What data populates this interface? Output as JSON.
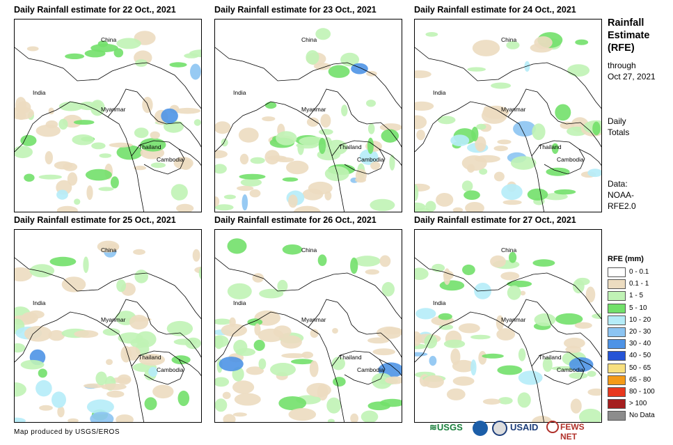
{
  "panels": [
    {
      "title": "Daily Rainfall estimate for 22 Oct., 2021",
      "labels": {
        "china": "China",
        "india": "India",
        "myanmar": "Myanmar",
        "thailand": "Thailand",
        "cambodia": "Cambodia"
      }
    },
    {
      "title": "Daily Rainfall estimate for 23 Oct., 2021",
      "labels": {
        "china": "China",
        "india": "India",
        "myanmar": "Myanmar",
        "thailand": "Thailand",
        "cambodia": "Cambodia"
      }
    },
    {
      "title": "Daily Rainfall estimate for 24 Oct., 2021",
      "labels": {
        "china": "China",
        "india": "India",
        "myanmar": "Myanmar",
        "thailand": "Thailand",
        "cambodia": "Cambodia"
      }
    },
    {
      "title": "Daily Rainfall estimate for 25 Oct., 2021",
      "labels": {
        "china": "China",
        "india": "India",
        "myanmar": "Myanmar",
        "thailand": "Thailand",
        "cambodia": "Cambodia"
      }
    },
    {
      "title": "Daily Rainfall estimate for 26 Oct., 2021",
      "labels": {
        "china": "China",
        "india": "India",
        "myanmar": "Myanmar",
        "thailand": "Thailand",
        "cambodia": "Cambodia"
      }
    },
    {
      "title": "Daily Rainfall estimate for 27 Oct., 2021",
      "labels": {
        "china": "China",
        "india": "India",
        "myanmar": "Myanmar",
        "thailand": "Thailand",
        "cambodia": "Cambodia"
      }
    }
  ],
  "sidebar": {
    "title_line1": "Rainfall",
    "title_line2": "Estimate",
    "title_line3": "(RFE)",
    "through": "through",
    "through_date": "Oct 27, 2021",
    "daily": "Daily",
    "totals": "Totals",
    "data_label": "Data:",
    "data_source1": "NOAA-",
    "data_source2": "RFE2.0"
  },
  "legend": {
    "title": "RFE (mm)",
    "items": [
      {
        "label": "0 - 0.1",
        "color": "#ffffff"
      },
      {
        "label": "0.1 - 1",
        "color": "#ecdcc0"
      },
      {
        "label": "1 - 5",
        "color": "#c0f3b5"
      },
      {
        "label": "5 - 10",
        "color": "#72e06a"
      },
      {
        "label": "10 - 20",
        "color": "#b5ecf8"
      },
      {
        "label": "20 - 30",
        "color": "#8cc4f2"
      },
      {
        "label": "30 - 40",
        "color": "#4e93e6"
      },
      {
        "label": "40 - 50",
        "color": "#2554d6"
      },
      {
        "label": "50 - 65",
        "color": "#f8e07f"
      },
      {
        "label": "65 - 80",
        "color": "#f49a18"
      },
      {
        "label": "80 - 100",
        "color": "#e8381e"
      },
      {
        "label": "> 100",
        "color": "#a51e1e"
      },
      {
        "label": "No Data",
        "color": "#8c8c8c"
      }
    ]
  },
  "footer": {
    "credit": "Map produced by USGS/EROS"
  },
  "logos": {
    "usgs": "USGS",
    "usaid": "USAID",
    "fewsnet": "FEWS NET"
  }
}
